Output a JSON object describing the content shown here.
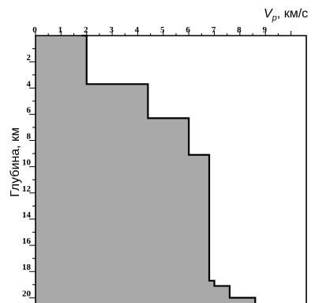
{
  "chart_data": {
    "type": "area",
    "title": "",
    "xlabel_symbol": "V",
    "xlabel_sub": "p",
    "xlabel_unit": ", км/с",
    "ylabel": "Глубина, км",
    "xlim": [
      0,
      10.6
    ],
    "ylim": [
      0,
      20.4
    ],
    "x_ticks": [
      0,
      1,
      2,
      3,
      4,
      5,
      6,
      7,
      8,
      9
    ],
    "y_ticks": [
      2,
      4,
      6,
      8,
      10,
      12,
      14,
      16,
      18,
      20
    ],
    "x_axis_position": "top",
    "grid": false,
    "fill_color": "#a9a9a9",
    "line_color": "#000000",
    "series": [
      {
        "x": [
          1.8,
          2.0,
          2.0,
          4.4,
          4.4,
          6.0,
          6.0,
          6.8,
          6.8,
          7.0,
          7.0,
          7.6,
          7.6,
          8.6,
          8.6
        ],
        "depth": [
          0.0,
          0.0,
          3.7,
          3.7,
          6.3,
          6.3,
          9.1,
          9.1,
          18.7,
          18.7,
          19.1,
          19.1,
          20.0,
          20.0,
          20.4
        ]
      }
    ]
  }
}
